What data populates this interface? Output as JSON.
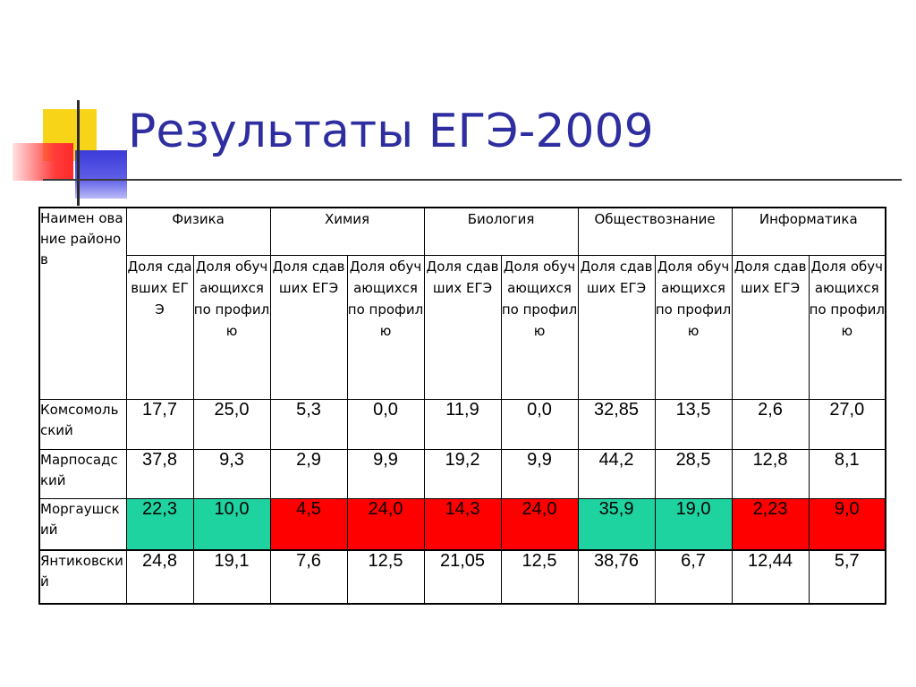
{
  "title": "Результаты ЕГЭ-2009",
  "colors": {
    "title": "#2e2ea0",
    "highlight_green": "#1ed3a0",
    "highlight_red": "#ff0000",
    "logo_yellow": "#f7d417",
    "logo_red": "#ff3b3b",
    "logo_blue": "#3a3ad8"
  },
  "table": {
    "corner_header": "Наимен ование районов",
    "subjects": [
      "Физика",
      "Химия",
      "Биология",
      "Обществознание",
      "Информатика"
    ],
    "sub_headers": {
      "share_taken": "Доля сдавших ЕГЭ",
      "share_taken_alt": "Доля сдавших ЕГЭ",
      "share_profile": "Доля обучающихся по профилю"
    },
    "rows": [
      {
        "district": "Комсомольский",
        "values": [
          "17,7",
          "25,0",
          "5,3",
          "0,0",
          "11,9",
          "0,0",
          "32,85",
          "13,5",
          "2,6",
          "27,0"
        ],
        "highlights": [
          "",
          "",
          "",
          "",
          "",
          "",
          "",
          "",
          "",
          ""
        ]
      },
      {
        "district": "Марпосадский",
        "values": [
          "37,8",
          "9,3",
          "2,9",
          "9,9",
          "19,2",
          "9,9",
          "44,2",
          "28,5",
          "12,8",
          "8,1"
        ],
        "highlights": [
          "",
          "",
          "",
          "",
          "",
          "",
          "",
          "",
          "",
          ""
        ]
      },
      {
        "district": "Моргаушский",
        "values": [
          "22,3",
          "10,0",
          "4,5",
          "24,0",
          "14,3",
          "24,0",
          "35,9",
          "19,0",
          "2,23",
          "9,0"
        ],
        "highlights": [
          "green",
          "green",
          "red",
          "red",
          "red",
          "red",
          "green",
          "green",
          "red",
          "red"
        ]
      },
      {
        "district": "Янтиковский",
        "values": [
          "24,8",
          "19,1",
          "7,6",
          "12,5",
          "21,05",
          "12,5",
          "38,76",
          "6,7",
          "12,44",
          "5,7"
        ],
        "highlights": [
          "",
          "",
          "",
          "",
          "",
          "",
          "",
          "",
          "",
          ""
        ]
      }
    ]
  }
}
